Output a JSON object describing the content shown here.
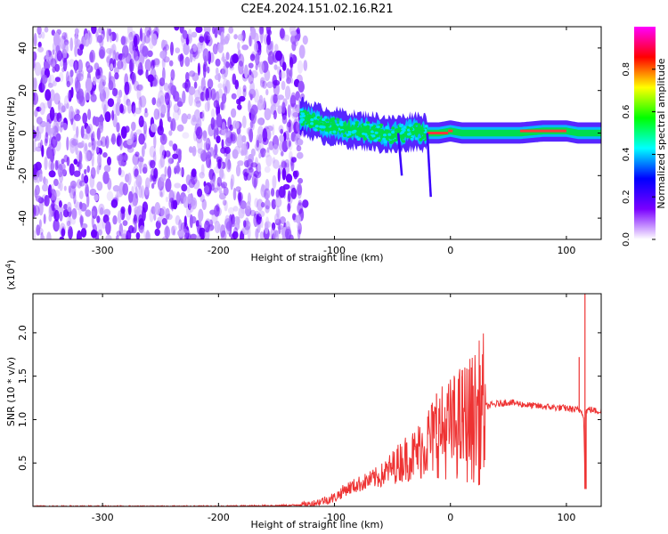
{
  "figure": {
    "title": "C2E4.2024.151.02.16.R21"
  },
  "chart_data": [
    {
      "type": "heatmap",
      "xlabel": "Height of straight line (km)",
      "ylabel": "Frequency (Hz)",
      "xlim": [
        -360,
        130
      ],
      "ylim": [
        -50,
        50
      ],
      "xticks": [
        -300,
        -200,
        -100,
        0,
        100
      ],
      "yticks": [
        -40,
        -20,
        0,
        20,
        40
      ],
      "noise_region_x": [
        -360,
        -125
      ],
      "ridge": {
        "x": [
          -130,
          -120,
          -110,
          -100,
          -90,
          -80,
          -70,
          -60,
          -50,
          -40,
          -30,
          -20,
          -10,
          0,
          10,
          20,
          40,
          60,
          80,
          100,
          110,
          115,
          120,
          130
        ],
        "y": [
          8,
          6,
          4,
          3,
          2,
          1,
          1,
          0,
          -1,
          0,
          1,
          0,
          0,
          1,
          0,
          0,
          0,
          0,
          1,
          1,
          0,
          0,
          0,
          0
        ]
      },
      "colorbar": {
        "label": "Normalized spectral amplitude",
        "range": [
          0,
          1
        ],
        "ticks": [
          0.0,
          0.2,
          0.4,
          0.6,
          0.8
        ],
        "colors": [
          "#ffffff",
          "#7a00ff",
          "#0000ff",
          "#00ffff",
          "#00ff00",
          "#ffff00",
          "#ff0000",
          "#ff00ff"
        ]
      },
      "colors": {
        "noise": "#6a00ff",
        "ridge_core": "#ff3b3b",
        "ridge_mid": "#00dd44",
        "ridge_edge": "#3a00ff"
      }
    },
    {
      "type": "line",
      "xlabel": "Height of straight line (km)",
      "ylabel": "SNR (10 * v/v)",
      "exponent_label": "(x10",
      "exponent_sup": "4",
      "exponent_close": ")",
      "xlim": [
        -360,
        130
      ],
      "ylim": [
        0,
        2.45
      ],
      "xticks": [
        -300,
        -200,
        -100,
        0,
        100
      ],
      "yticks": [
        0.5,
        1.0,
        1.5,
        2.0
      ],
      "ytick_labels": [
        "0.5",
        "1.0",
        "1.5",
        "2.0"
      ],
      "color": "#ee3333",
      "x": [
        -360,
        -300,
        -200,
        -140,
        -120,
        -100,
        -90,
        -80,
        -70,
        -60,
        -50,
        -40,
        -30,
        -20,
        -10,
        0,
        10,
        20,
        30,
        40,
        50,
        60,
        70,
        80,
        90,
        100,
        105,
        110,
        113,
        115,
        116,
        117,
        120,
        125,
        130
      ],
      "y": [
        0.0,
        0.0,
        0.0,
        0.01,
        0.03,
        0.1,
        0.2,
        0.25,
        0.3,
        0.35,
        0.45,
        0.55,
        0.6,
        0.75,
        0.85,
        0.9,
        0.97,
        1.02,
        1.15,
        1.18,
        1.2,
        1.18,
        1.16,
        1.15,
        1.14,
        1.13,
        1.12,
        1.11,
        1.1,
        1.05,
        0.2,
        1.1,
        1.12,
        1.1,
        1.1
      ],
      "spikes": [
        {
          "x": -12,
          "y": 1.3
        },
        {
          "x": 10,
          "y": 1.5
        },
        {
          "x": 111,
          "y": 1.72
        },
        {
          "x": 116,
          "y": 2.45
        },
        {
          "x": 117,
          "y": 0.2
        }
      ]
    }
  ]
}
